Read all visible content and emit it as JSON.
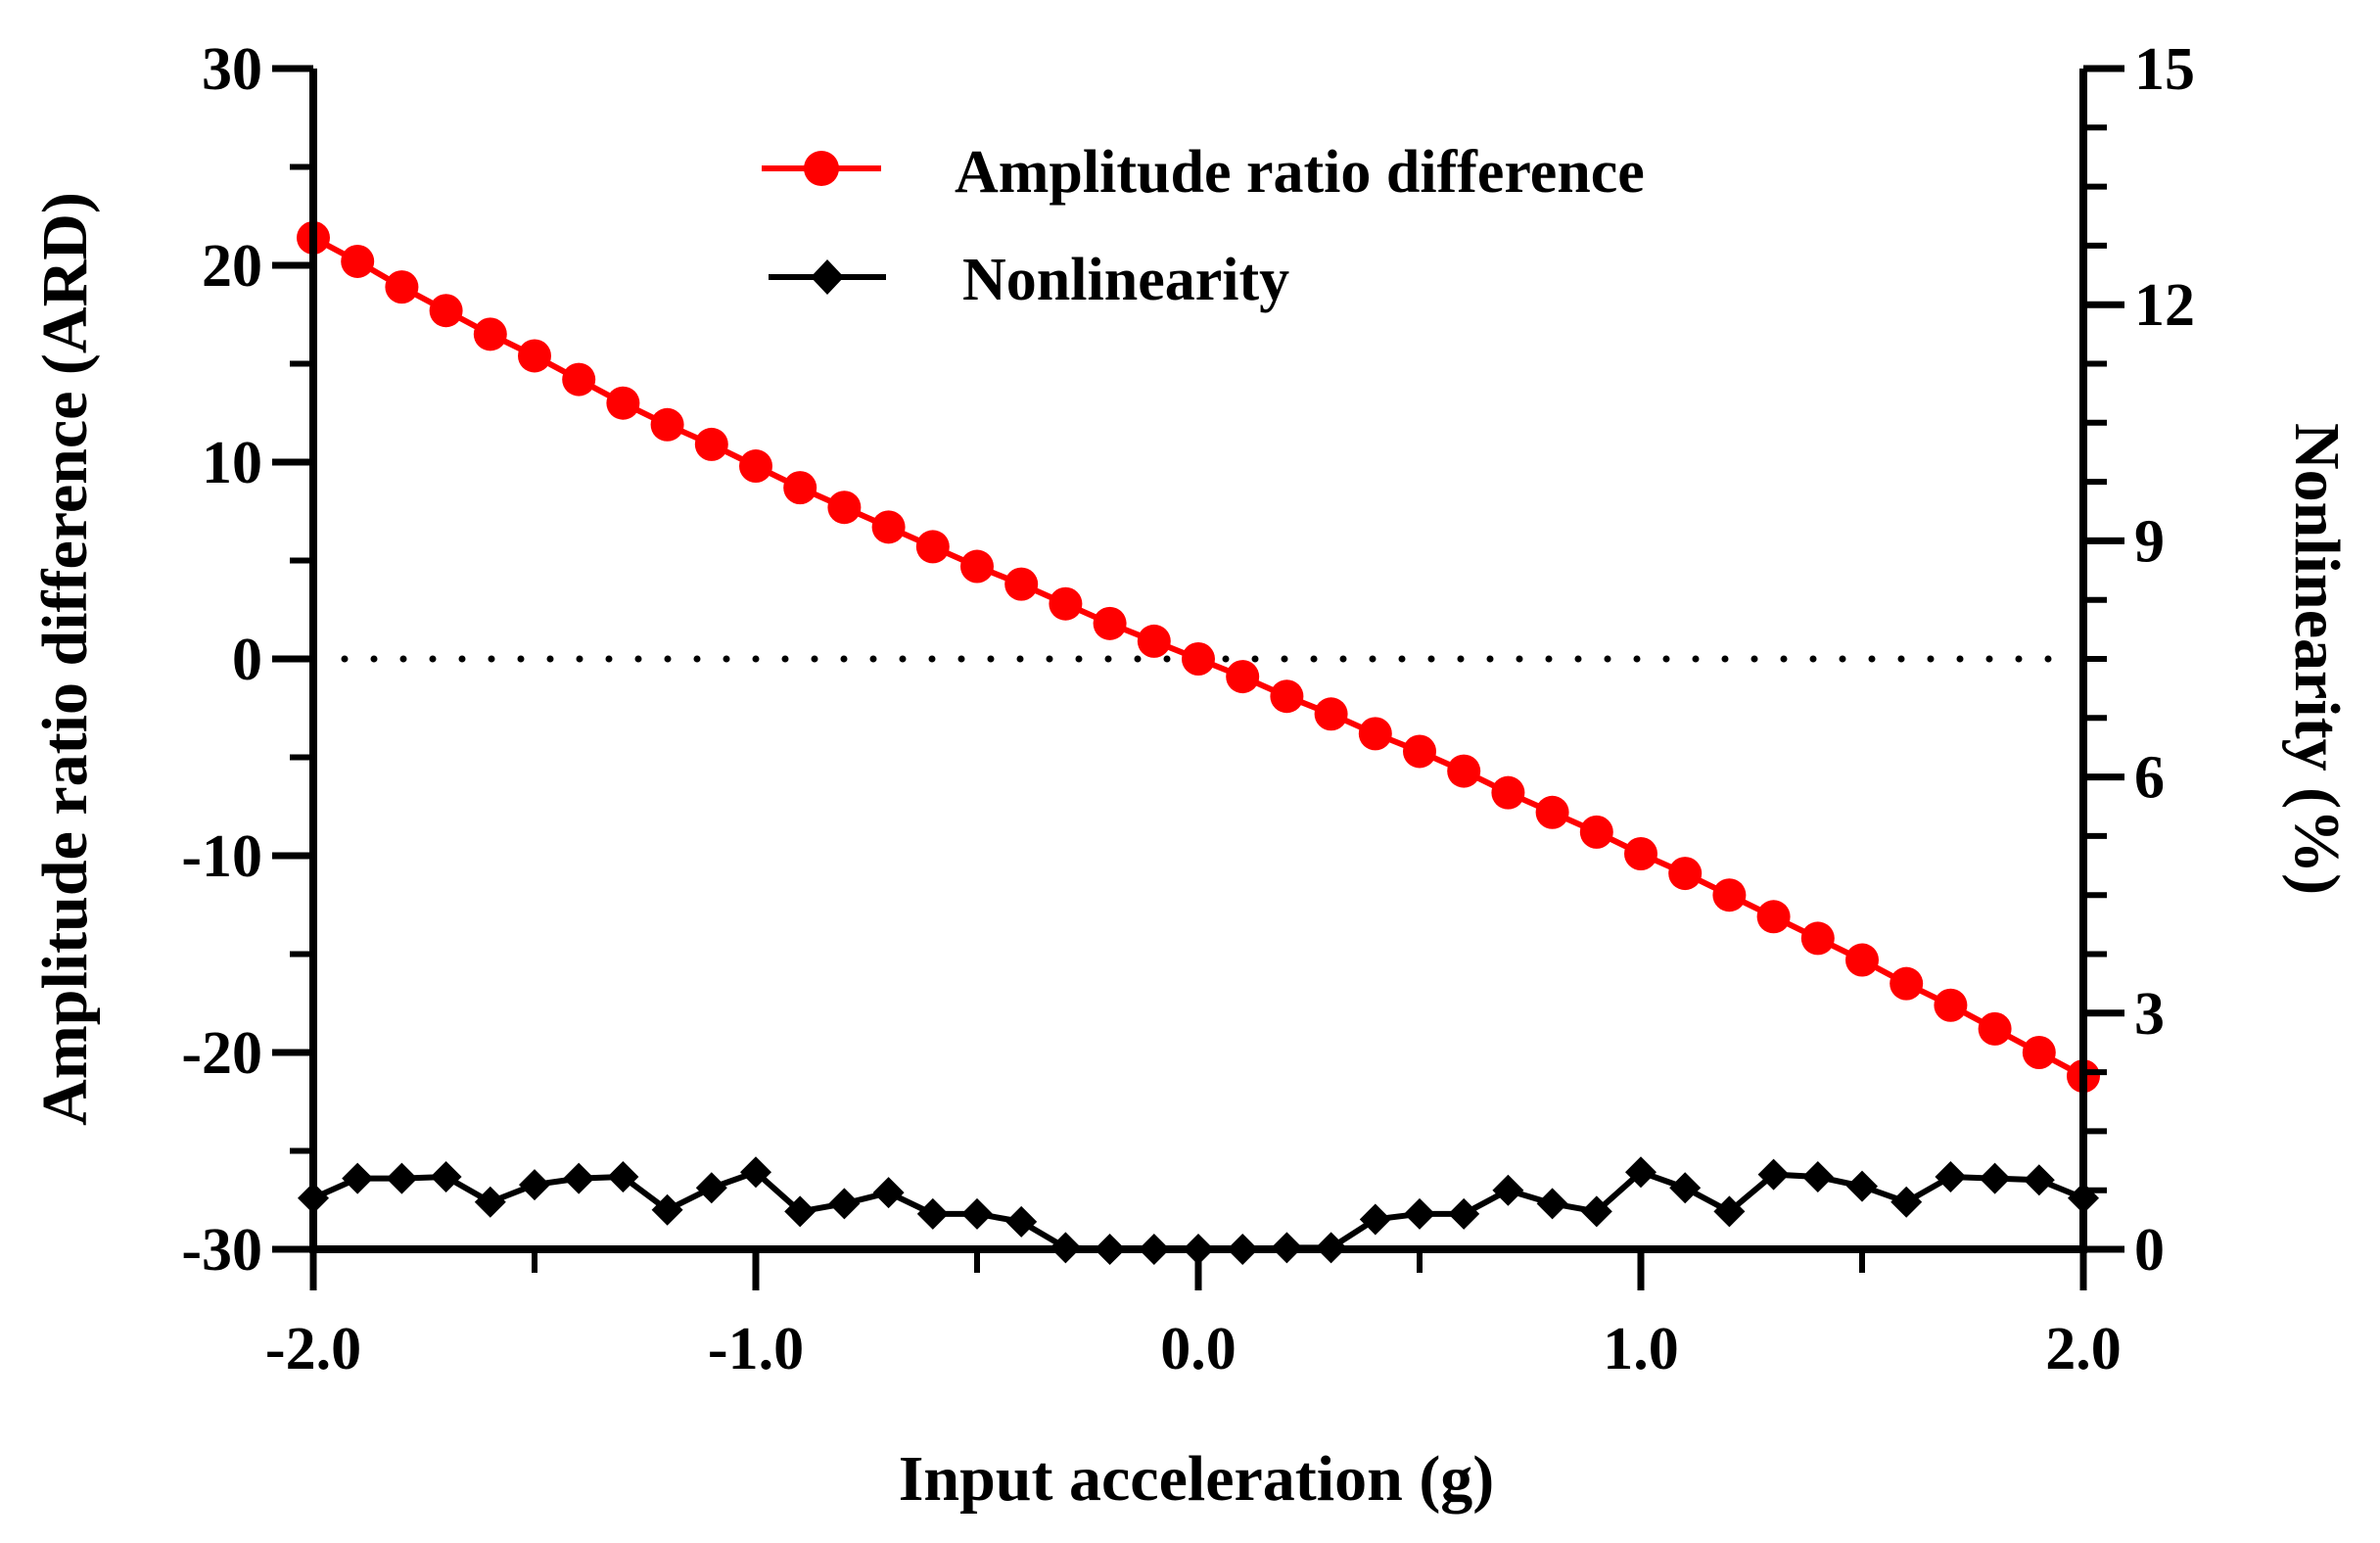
{
  "chart_data": {
    "type": "line",
    "xlabel": "Input acceleration (g)",
    "ylabel_left": "Amplitude ratio difference (ARD)",
    "ylabel_right": "Nonlinearity (%)",
    "xlim": [
      -2.0,
      2.0
    ],
    "ylim_left": [
      -30,
      30
    ],
    "ylim_right": [
      0,
      15
    ],
    "x_ticks": [
      "-2.0",
      "-1.0",
      "0.0",
      "1.0",
      "2.0"
    ],
    "y_left_ticks": [
      "30",
      "20",
      "10",
      "0",
      "-10",
      "-20",
      "-30"
    ],
    "y_right_ticks": [
      "15",
      "12",
      "9",
      "6",
      "3",
      "0"
    ],
    "reference_line": {
      "axis": "left",
      "y": 0,
      "style": "dotted"
    },
    "legend_position": "top-center",
    "colors": {
      "ard": "#ff0000",
      "nonlinearity": "#000000",
      "axes": "#000000"
    },
    "x": [
      -2.0,
      -1.9,
      -1.8,
      -1.7,
      -1.6,
      -1.5,
      -1.4,
      -1.3,
      -1.2,
      -1.1,
      -1.0,
      -0.9,
      -0.8,
      -0.7,
      -0.6,
      -0.5,
      -0.4,
      -0.3,
      -0.2,
      -0.1,
      0.0,
      0.1,
      0.2,
      0.3,
      0.4,
      0.5,
      0.6,
      0.7,
      0.8,
      0.9,
      1.0,
      1.1,
      1.2,
      1.3,
      1.4,
      1.5,
      1.6,
      1.7,
      1.8,
      1.9,
      2.0
    ],
    "series": [
      {
        "name": "Amplitude ratio difference",
        "axis": "left",
        "marker": "circle",
        "values": [
          21.4,
          20.2,
          18.9,
          17.7,
          16.5,
          15.4,
          14.2,
          13.0,
          11.9,
          10.9,
          9.8,
          8.7,
          7.7,
          6.7,
          5.7,
          4.7,
          3.8,
          2.8,
          1.8,
          0.9,
          0.0,
          -0.9,
          -1.9,
          -2.8,
          -3.8,
          -4.7,
          -5.7,
          -6.8,
          -7.8,
          -8.8,
          -9.9,
          -10.9,
          -12.0,
          -13.1,
          -14.2,
          -15.3,
          -16.5,
          -17.6,
          -18.8,
          -20.0,
          -21.2
        ]
      },
      {
        "name": "Nonlinearity",
        "axis": "right",
        "marker": "diamond",
        "values": [
          0.65,
          0.9,
          0.9,
          0.92,
          0.6,
          0.82,
          0.9,
          0.92,
          0.5,
          0.78,
          0.98,
          0.48,
          0.58,
          0.72,
          0.45,
          0.45,
          0.35,
          0.02,
          0.0,
          0.0,
          0.0,
          0.0,
          0.02,
          0.02,
          0.38,
          0.45,
          0.45,
          0.75,
          0.58,
          0.48,
          0.98,
          0.78,
          0.48,
          0.95,
          0.92,
          0.8,
          0.6,
          0.92,
          0.9,
          0.88,
          0.65
        ]
      }
    ]
  }
}
